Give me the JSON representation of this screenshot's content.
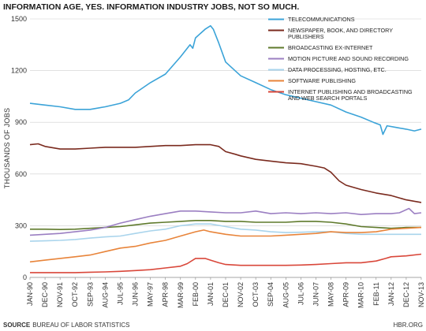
{
  "chart_data": {
    "type": "line",
    "title": "INFORMATION AGE, YES. INFORMATION INDUSTRY JOBS, NOT SO MUCH.",
    "ylabel": "THOUSANDS OF JOBS",
    "xlabel": "",
    "ylim": [
      0,
      1500
    ],
    "yticks": [
      0,
      300,
      600,
      900,
      1200,
      1500
    ],
    "grid": "horizontal",
    "legend_position": "top-right",
    "x_tick_labels": [
      "JAN-90",
      "DEC-90",
      "NOV-91",
      "OCT-92",
      "SEP-93",
      "AUG-94",
      "JUL-95",
      "JUN-96",
      "MAY-97",
      "APR-98",
      "MAR-99",
      "FEB-00",
      "JAN-01",
      "DEC-01",
      "NOV-02",
      "OCT-03",
      "SEP-04",
      "AUG-05",
      "JUL-06",
      "JUN-07",
      "MAY-08",
      "APR-09",
      "MAR-10",
      "FEB-11",
      "JAN-12",
      "DEC-12",
      "NOV-13"
    ],
    "x_positions": [
      0,
      11,
      22,
      33,
      44,
      55,
      66,
      77,
      88,
      99,
      110,
      121,
      132,
      143,
      154,
      165,
      176,
      187,
      198,
      209,
      220,
      231,
      242,
      253,
      264,
      275,
      286
    ],
    "x_max": 286,
    "source_label": "SOURCE",
    "source_text": "BUREAU OF LABOR STATISTICS",
    "credit": "HBR.ORG",
    "series": [
      {
        "name": "TELECOMMUNICATIONS",
        "color": "#3ba3d8",
        "points": [
          [
            0,
            1010
          ],
          [
            11,
            1000
          ],
          [
            22,
            990
          ],
          [
            33,
            975
          ],
          [
            44,
            975
          ],
          [
            55,
            990
          ],
          [
            66,
            1010
          ],
          [
            72,
            1030
          ],
          [
            77,
            1070
          ],
          [
            88,
            1130
          ],
          [
            99,
            1180
          ],
          [
            110,
            1280
          ],
          [
            117,
            1350
          ],
          [
            119,
            1330
          ],
          [
            121,
            1390
          ],
          [
            128,
            1440
          ],
          [
            132,
            1460
          ],
          [
            134,
            1440
          ],
          [
            138,
            1360
          ],
          [
            143,
            1250
          ],
          [
            154,
            1170
          ],
          [
            165,
            1130
          ],
          [
            176,
            1090
          ],
          [
            187,
            1060
          ],
          [
            198,
            1040
          ],
          [
            209,
            1020
          ],
          [
            220,
            1000
          ],
          [
            231,
            960
          ],
          [
            242,
            930
          ],
          [
            251,
            900
          ],
          [
            256,
            885
          ],
          [
            258,
            830
          ],
          [
            261,
            880
          ],
          [
            268,
            870
          ],
          [
            275,
            860
          ],
          [
            281,
            850
          ],
          [
            286,
            860
          ]
        ]
      },
      {
        "name": "NEWSPAPER, BOOK, AND DIRECTORY PUBLISHERS",
        "color": "#7a2a1e",
        "points": [
          [
            0,
            770
          ],
          [
            6,
            775
          ],
          [
            11,
            760
          ],
          [
            22,
            745
          ],
          [
            33,
            745
          ],
          [
            44,
            750
          ],
          [
            55,
            755
          ],
          [
            66,
            755
          ],
          [
            77,
            755
          ],
          [
            88,
            760
          ],
          [
            99,
            765
          ],
          [
            110,
            765
          ],
          [
            121,
            770
          ],
          [
            132,
            770
          ],
          [
            138,
            760
          ],
          [
            143,
            730
          ],
          [
            150,
            715
          ],
          [
            154,
            705
          ],
          [
            165,
            685
          ],
          [
            176,
            675
          ],
          [
            187,
            665
          ],
          [
            198,
            660
          ],
          [
            209,
            645
          ],
          [
            215,
            635
          ],
          [
            220,
            610
          ],
          [
            226,
            560
          ],
          [
            231,
            535
          ],
          [
            242,
            510
          ],
          [
            253,
            490
          ],
          [
            264,
            475
          ],
          [
            275,
            450
          ],
          [
            286,
            435
          ]
        ]
      },
      {
        "name": "BROADCASTING EX-INTERNET",
        "color": "#5f7a2c",
        "points": [
          [
            0,
            280
          ],
          [
            11,
            280
          ],
          [
            22,
            278
          ],
          [
            33,
            280
          ],
          [
            44,
            285
          ],
          [
            55,
            290
          ],
          [
            66,
            295
          ],
          [
            77,
            305
          ],
          [
            88,
            315
          ],
          [
            99,
            320
          ],
          [
            110,
            325
          ],
          [
            121,
            330
          ],
          [
            132,
            330
          ],
          [
            143,
            325
          ],
          [
            154,
            325
          ],
          [
            165,
            320
          ],
          [
            176,
            320
          ],
          [
            187,
            320
          ],
          [
            198,
            325
          ],
          [
            209,
            325
          ],
          [
            220,
            320
          ],
          [
            231,
            310
          ],
          [
            242,
            295
          ],
          [
            253,
            290
          ],
          [
            264,
            285
          ],
          [
            275,
            290
          ],
          [
            286,
            290
          ]
        ]
      },
      {
        "name": "MOTION PICTURE AND SOUND RECORDING",
        "color": "#9b7fc2",
        "points": [
          [
            0,
            245
          ],
          [
            11,
            250
          ],
          [
            22,
            255
          ],
          [
            33,
            265
          ],
          [
            44,
            275
          ],
          [
            55,
            290
          ],
          [
            66,
            315
          ],
          [
            77,
            335
          ],
          [
            88,
            355
          ],
          [
            99,
            370
          ],
          [
            110,
            385
          ],
          [
            121,
            385
          ],
          [
            132,
            380
          ],
          [
            143,
            375
          ],
          [
            154,
            375
          ],
          [
            165,
            385
          ],
          [
            176,
            370
          ],
          [
            187,
            375
          ],
          [
            198,
            370
          ],
          [
            209,
            375
          ],
          [
            220,
            370
          ],
          [
            231,
            375
          ],
          [
            242,
            365
          ],
          [
            253,
            370
          ],
          [
            264,
            370
          ],
          [
            270,
            375
          ],
          [
            277,
            400
          ],
          [
            281,
            370
          ],
          [
            286,
            375
          ]
        ]
      },
      {
        "name": "DATA PROCESSING, HOSTING, ETC.",
        "color": "#a9d4ec",
        "points": [
          [
            0,
            210
          ],
          [
            11,
            212
          ],
          [
            22,
            215
          ],
          [
            33,
            220
          ],
          [
            44,
            228
          ],
          [
            55,
            235
          ],
          [
            66,
            240
          ],
          [
            77,
            255
          ],
          [
            88,
            270
          ],
          [
            99,
            280
          ],
          [
            110,
            300
          ],
          [
            121,
            310
          ],
          [
            132,
            310
          ],
          [
            143,
            295
          ],
          [
            154,
            280
          ],
          [
            165,
            275
          ],
          [
            176,
            265
          ],
          [
            187,
            260
          ],
          [
            198,
            262
          ],
          [
            209,
            265
          ],
          [
            220,
            265
          ],
          [
            231,
            255
          ],
          [
            242,
            250
          ],
          [
            253,
            250
          ],
          [
            264,
            250
          ],
          [
            275,
            250
          ],
          [
            286,
            250
          ]
        ]
      },
      {
        "name": "SOFTWARE PUBLISHING",
        "color": "#e8843a",
        "points": [
          [
            0,
            90
          ],
          [
            11,
            100
          ],
          [
            22,
            110
          ],
          [
            33,
            120
          ],
          [
            44,
            130
          ],
          [
            55,
            150
          ],
          [
            66,
            170
          ],
          [
            77,
            180
          ],
          [
            88,
            200
          ],
          [
            99,
            215
          ],
          [
            110,
            240
          ],
          [
            121,
            265
          ],
          [
            127,
            275
          ],
          [
            132,
            265
          ],
          [
            143,
            250
          ],
          [
            154,
            240
          ],
          [
            165,
            240
          ],
          [
            176,
            240
          ],
          [
            187,
            245
          ],
          [
            198,
            250
          ],
          [
            209,
            255
          ],
          [
            220,
            265
          ],
          [
            231,
            260
          ],
          [
            242,
            260
          ],
          [
            253,
            265
          ],
          [
            264,
            280
          ],
          [
            275,
            285
          ],
          [
            286,
            290
          ]
        ]
      },
      {
        "name": "INTERNET PUBLISHING AND BROADCASTING AND WEB SEARCH PORTALS",
        "color": "#d9473a",
        "points": [
          [
            0,
            28
          ],
          [
            11,
            28
          ],
          [
            22,
            28
          ],
          [
            33,
            28
          ],
          [
            44,
            30
          ],
          [
            55,
            32
          ],
          [
            66,
            35
          ],
          [
            77,
            40
          ],
          [
            88,
            45
          ],
          [
            99,
            55
          ],
          [
            110,
            65
          ],
          [
            115,
            80
          ],
          [
            121,
            110
          ],
          [
            128,
            110
          ],
          [
            132,
            100
          ],
          [
            138,
            85
          ],
          [
            143,
            75
          ],
          [
            154,
            70
          ],
          [
            165,
            70
          ],
          [
            176,
            70
          ],
          [
            187,
            70
          ],
          [
            198,
            72
          ],
          [
            209,
            75
          ],
          [
            220,
            80
          ],
          [
            231,
            85
          ],
          [
            242,
            85
          ],
          [
            253,
            95
          ],
          [
            260,
            110
          ],
          [
            264,
            120
          ],
          [
            275,
            125
          ],
          [
            286,
            135
          ]
        ]
      }
    ]
  }
}
